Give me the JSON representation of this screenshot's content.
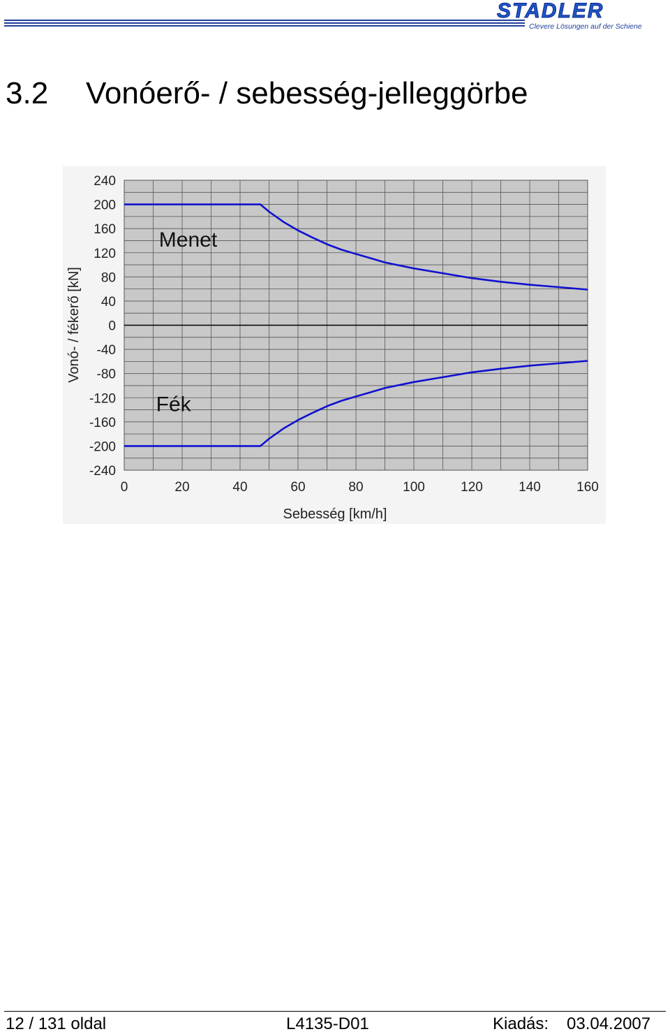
{
  "header": {
    "logo": "STADLER",
    "tagline": "Clevere Lösungen auf der Schiene",
    "brand_color": "#1f55c8"
  },
  "section": {
    "number": "3.2",
    "title": "Vonóerő- / sebesség-jelleggörbe"
  },
  "chart_data": {
    "type": "line",
    "title": "",
    "xlabel": "Sebesség [km/h]",
    "ylabel": "Vonó- / fékerő [kN]",
    "xlim": [
      0,
      160
    ],
    "ylim": [
      -240,
      240
    ],
    "x_ticks": [
      0,
      20,
      40,
      60,
      80,
      100,
      120,
      140,
      160
    ],
    "y_ticks": [
      240,
      200,
      160,
      120,
      80,
      40,
      0,
      -40,
      -80,
      -120,
      -160,
      -200,
      -240
    ],
    "grid": true,
    "plot_background": "#c8c8c8",
    "line_color": "#1010d0",
    "series": [
      {
        "name": "Menet",
        "x": [
          0,
          47,
          50,
          55,
          60,
          65,
          70,
          75,
          80,
          85,
          90,
          100,
          110,
          120,
          130,
          140,
          150,
          160
        ],
        "y": [
          200,
          200,
          188,
          171,
          157,
          145,
          134,
          125,
          118,
          111,
          104,
          94,
          86,
          78,
          72,
          67,
          63,
          59
        ]
      },
      {
        "name": "Fék",
        "x": [
          0,
          47,
          50,
          55,
          60,
          65,
          70,
          75,
          80,
          85,
          90,
          100,
          110,
          120,
          130,
          140,
          150,
          160
        ],
        "y": [
          -200,
          -200,
          -188,
          -171,
          -157,
          -145,
          -134,
          -125,
          -118,
          -111,
          -104,
          -94,
          -86,
          -78,
          -72,
          -67,
          -63,
          -59
        ]
      }
    ],
    "annotations": [
      {
        "text": "Menet",
        "x": 12,
        "y": 130
      },
      {
        "text": "Fék",
        "x": 11,
        "y": -142
      }
    ]
  },
  "footer": {
    "page": "12 / 131 oldal",
    "doc_id": "L4135-D01",
    "issue_label": "Kiadás:",
    "issue_date": "03.04.2007"
  }
}
